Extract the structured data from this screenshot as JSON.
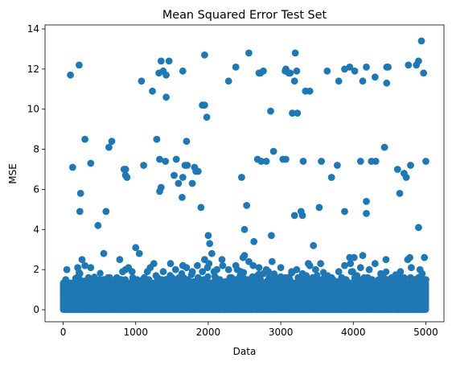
{
  "chart_data": {
    "type": "scatter",
    "title": "Mean Squared Error Test Set",
    "xlabel": "Data",
    "ylabel": "MSE",
    "xlim": [
      -250,
      5250
    ],
    "ylim": [
      -0.6,
      14.2
    ],
    "xticks": [
      0,
      1000,
      2000,
      3000,
      4000,
      5000
    ],
    "yticks": [
      0,
      2,
      4,
      6,
      8,
      10,
      12,
      14
    ],
    "grid": false,
    "legend": "none",
    "marker_color": "#1f77b4",
    "n_points": 5000,
    "x_range": [
      0,
      5000
    ],
    "y_range": [
      0.0,
      13.4
    ],
    "bulk_band": {
      "x_from": 0,
      "x_to": 5000,
      "y_from": 0.0,
      "y_to": 1.5
    },
    "series": [
      {
        "x": [
          35,
          50,
          60,
          75,
          85,
          110,
          150,
          170,
          200,
          230,
          260,
          300,
          380,
          420,
          500,
          560,
          620,
          700,
          780,
          820,
          860,
          900,
          950,
          1000,
          1050,
          1100,
          1160,
          1200,
          1250,
          1280,
          1330,
          1380,
          1420,
          1480,
          1550,
          1600,
          1650,
          1700,
          1780,
          1850,
          1900,
          1920,
          1950,
          1990,
          2010,
          2050,
          2080,
          2120,
          2200,
          2280,
          2320,
          2380,
          2450,
          2500,
          2560,
          2620,
          2680,
          2700,
          2760,
          2800,
          2830,
          2880,
          2930,
          3000,
          3100,
          3150,
          3220,
          3300,
          3350,
          3400,
          3480,
          3550,
          3600,
          3700,
          3800,
          3880,
          3950,
          3990,
          4050,
          4100,
          4150,
          4220,
          4300,
          4350,
          4380,
          4450,
          4500,
          4530,
          4580,
          4650,
          4700,
          4750,
          4780,
          4800,
          4850,
          4900,
          4920,
          4950,
          4980,
          5000,
          170,
          190,
          230,
          300,
          350,
          400,
          480,
          560,
          640,
          700,
          740,
          800,
          880,
          960,
          1020,
          1080,
          1120,
          1180,
          1240,
          1300,
          1360,
          1440,
          1500,
          1560,
          1620,
          1660,
          1720,
          1800,
          1860,
          1940,
          2040,
          2100,
          2160,
          2240,
          2300,
          2360,
          2420,
          2480,
          2540,
          2600,
          2650,
          2720,
          2780,
          2840,
          2900,
          2960,
          3060,
          3120,
          3180,
          3240,
          3280,
          3380,
          3440,
          3520,
          3580,
          3660,
          3720,
          3760,
          3840,
          3900,
          3960,
          4020,
          4080,
          4160,
          4200,
          4260,
          4320,
          4420,
          4480,
          4560,
          4620,
          4680,
          4720,
          4790,
          4830,
          4880,
          4940,
          4970
        ],
        "y": [
          1.5,
          2.0,
          1.1,
          0.9,
          1.3,
          1.2,
          1.0,
          1.2,
          2.1,
          1.8,
          2.5,
          2.2,
          2.1,
          1.3,
          1.5,
          2.8,
          1.6,
          1.3,
          2.5,
          1.9,
          2.0,
          2.1,
          1.9,
          3.1,
          2.8,
          1.5,
          1.9,
          2.1,
          2.3,
          1.7,
          1.4,
          1.9,
          1.4,
          2.3,
          2.0,
          1.6,
          2.2,
          2.1,
          1.9,
          2.2,
          1.4,
          1.9,
          2.5,
          2.1,
          2.3,
          2.8,
          1.9,
          2.0,
          2.2,
          2.0,
          1.6,
          2.2,
          1.9,
          2.7,
          2.4,
          2.2,
          1.7,
          2.1,
          1.8,
          2.0,
          1.9,
          2.4,
          1.6,
          2.1,
          1.6,
          1.9,
          2.0,
          1.8,
          1.7,
          2.2,
          2.0,
          2.3,
          1.6,
          1.6,
          1.9,
          2.2,
          2.6,
          1.9,
          1.7,
          2.1,
          1.6,
          2.0,
          2.3,
          1.5,
          1.8,
          2.5,
          1.5,
          1.6,
          1.7,
          1.9,
          1.6,
          2.5,
          2.6,
          2.1,
          1.5,
          1.6,
          2.0,
          1.8,
          2.6,
          1.5,
          1.4,
          1.6,
          1.5,
          1.4,
          1.6,
          1.5,
          1.3,
          1.5,
          1.6,
          1.4,
          1.6,
          1.5,
          1.3,
          1.6,
          1.5,
          1.4,
          1.6,
          1.5,
          1.3,
          1.6,
          1.5,
          1.4,
          1.6,
          1.5,
          1.3,
          1.6,
          1.5,
          1.4,
          1.6,
          1.5,
          1.3,
          1.6,
          1.5,
          1.4,
          1.6,
          1.5,
          1.3,
          1.6,
          1.5,
          1.4,
          1.6,
          1.5,
          1.3,
          1.6,
          1.5,
          1.4,
          1.6,
          1.5,
          1.3,
          1.6,
          1.5,
          1.4,
          1.6,
          1.5,
          1.3,
          1.6,
          1.5,
          1.4,
          1.6,
          1.5,
          1.3,
          1.6,
          1.5,
          1.4,
          1.6,
          1.5,
          1.3,
          1.6,
          1.5,
          1.4,
          1.6,
          1.5,
          1.3,
          1.6,
          1.5,
          1.4,
          1.6,
          1.5
        ]
      },
      {
        "x": [
          100,
          220,
          1080,
          1230,
          1320,
          1350,
          1380,
          1420,
          1460,
          1650,
          1920,
          1950,
          2280,
          2380,
          2560,
          2700,
          3070,
          3110,
          3160,
          3190,
          3200,
          3400,
          3640,
          3800,
          3880,
          3950,
          4020,
          4130,
          4460,
          4480,
          4870,
          4900,
          4940
        ],
        "y": [
          11.7,
          12.2,
          11.4,
          10.9,
          11.8,
          12.4,
          11.9,
          11.7,
          12.4,
          11.9,
          10.2,
          12.7,
          11.4,
          12.1,
          12.8,
          11.8,
          12.0,
          11.8,
          9.8,
          11.4,
          12.8,
          10.9,
          11.9,
          11.4,
          12.0,
          12.1,
          11.9,
          11.4,
          11.3,
          12.1,
          12.2,
          12.4,
          13.4
        ]
      },
      {
        "x": [
          1420,
          1920,
          1950,
          1980,
          2860,
          2720,
          2760,
          3060,
          3130,
          3220,
          3340,
          4180,
          4300,
          4460,
          4760,
          4970
        ],
        "y": [
          10.6,
          10.2,
          10.2,
          9.6,
          9.9,
          11.8,
          11.9,
          11.9,
          11.8,
          11.9,
          10.9,
          12.1,
          11.6,
          12.1,
          12.2,
          11.8
        ]
      },
      {
        "x": [
          130,
          240,
          300,
          380,
          860,
          880,
          1110,
          1290,
          1330,
          1350,
          1410,
          1560,
          1650,
          1680,
          1700,
          1780,
          1810,
          1860,
          1900,
          2460,
          2530,
          2680,
          2730,
          2800,
          2900,
          3030,
          3070,
          3230,
          3280,
          3310,
          3530,
          3560,
          3700,
          3780,
          3880,
          4100,
          4180,
          4250,
          4310,
          4430,
          4610,
          4640,
          4700,
          4730,
          4790,
          4900,
          5000
        ],
        "y": [
          7.1,
          5.8,
          8.5,
          7.3,
          7.0,
          6.6,
          7.2,
          8.5,
          7.5,
          6.1,
          7.4,
          7.5,
          6.6,
          7.2,
          8.4,
          6.3,
          7.1,
          6.9,
          5.1,
          6.6,
          5.2,
          7.5,
          7.4,
          7.4,
          7.9,
          7.5,
          7.5,
          9.8,
          4.9,
          7.4,
          5.1,
          7.4,
          6.6,
          7.2,
          4.9,
          7.4,
          5.4,
          7.4,
          7.4,
          8.1,
          7.0,
          5.8,
          6.8,
          6.6,
          7.2,
          4.1,
          7.4
        ]
      },
      {
        "x": [
          230,
          480,
          590,
          630,
          670,
          840,
          860,
          1330,
          1530,
          1590,
          1640,
          1710,
          1830,
          2000,
          2020,
          2190,
          2400,
          2480,
          2500,
          2630,
          2870,
          3190,
          3300,
          3380,
          3450,
          3960,
          4010,
          4130,
          4180
        ],
        "y": [
          4.9,
          4.2,
          4.9,
          8.1,
          8.4,
          7.0,
          6.7,
          5.9,
          6.7,
          6.3,
          5.6,
          7.2,
          6.9,
          3.7,
          3.3,
          2.5,
          2.0,
          2.6,
          4.0,
          3.4,
          3.7,
          4.7,
          4.7,
          2.3,
          3.2,
          2.3,
          2.6,
          2.7,
          4.8
        ]
      }
    ]
  }
}
